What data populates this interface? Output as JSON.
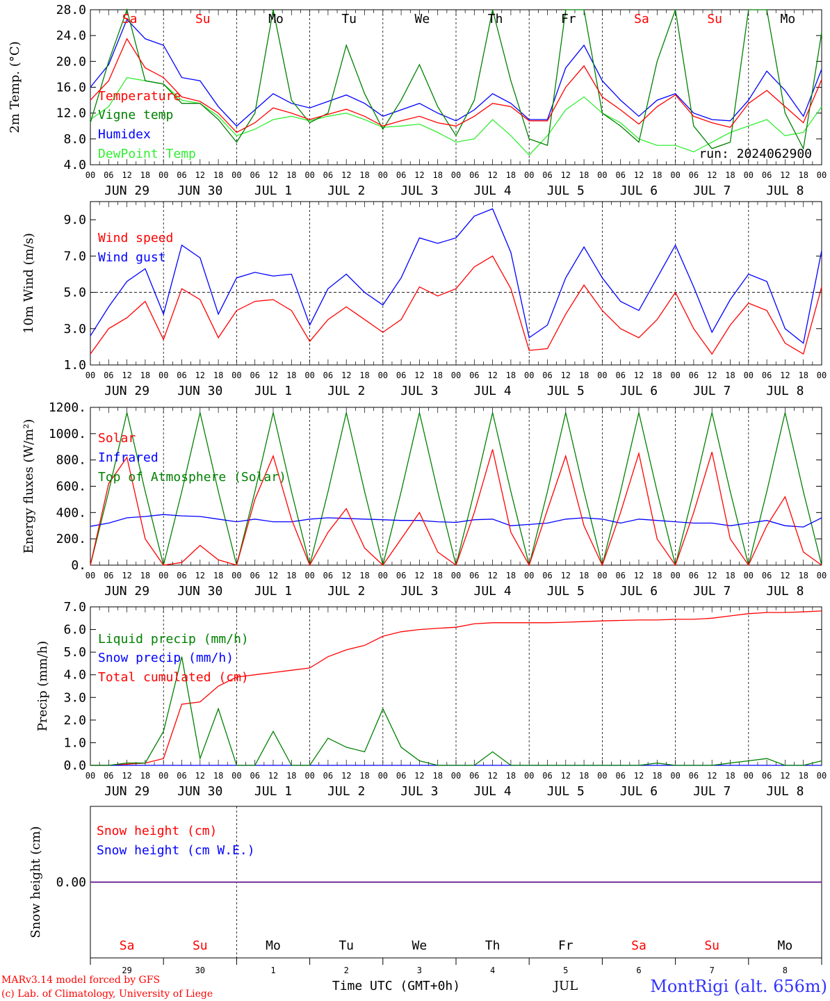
{
  "days": [
    "Sa",
    "Su",
    "Mo",
    "Tu",
    "We",
    "Th",
    "Fr",
    "Sa",
    "Su",
    "Mo"
  ],
  "weekend": [
    true,
    true,
    false,
    false,
    false,
    false,
    false,
    true,
    true,
    false
  ],
  "hour_ticks": [
    "00",
    "06",
    "12",
    "18"
  ],
  "date_labels": [
    "JUN 29",
    "JUN 30",
    "JUL  1",
    "JUL  2",
    "JUL  3",
    "JUL  4",
    "JUL  5",
    "JUL  6",
    "JUL  7",
    "JUL  8"
  ],
  "day_numbers": [
    "29",
    "30",
    "1",
    "2",
    "3",
    "4",
    "5",
    "6",
    "7",
    "8"
  ],
  "footer": {
    "model": "MARv3.14 model forced by GFS",
    "lab": "(c) Lab. of Climatology, University of Liege",
    "xlabel": "Time UTC (GMT+0h)",
    "month": "JUL",
    "station": "MontRigi (alt. 656m)"
  },
  "colors": {
    "red": "#ff0000",
    "green": "#008000",
    "blue": "#0000ff",
    "light_green": "#33ee33",
    "purple": "#7a2f9a"
  },
  "chart_data": [
    {
      "type": "line",
      "ylabel": "2m Temp. (°C)",
      "y_ticks": [
        "28.0",
        "24.0",
        "20.0",
        "16.0",
        "12.0",
        "8.0",
        "4.0"
      ],
      "ylim": [
        4,
        28
      ],
      "run_label": "run: 2024062900",
      "x_hours": [
        0,
        6,
        12,
        18,
        24,
        30,
        36,
        42,
        48,
        54,
        60,
        66,
        72,
        78,
        84,
        90,
        96,
        102,
        108,
        114,
        120,
        126,
        132,
        138,
        144,
        150,
        156,
        162,
        168,
        174,
        180,
        186,
        192,
        198,
        204,
        210,
        216,
        222,
        228,
        234,
        240
      ],
      "series": [
        {
          "name": "Temperature",
          "color": "#ff0000",
          "values": [
            14.0,
            17.0,
            23.5,
            19.0,
            17.5,
            14.5,
            13.8,
            12.0,
            9.0,
            10.5,
            12.8,
            12.0,
            11.0,
            11.8,
            12.6,
            11.5,
            10.0,
            10.8,
            11.5,
            10.5,
            10.0,
            11.5,
            13.5,
            13.0,
            10.8,
            10.8,
            16.0,
            19.3,
            14.5,
            12.5,
            10.3,
            13.0,
            14.8,
            11.5,
            10.5,
            9.8,
            13.5,
            15.5,
            13.0,
            10.5,
            17.2
          ]
        },
        {
          "name": "Vigne temp",
          "color": "#008000",
          "values": [
            10.5,
            20.0,
            30.0,
            17.0,
            16.5,
            13.5,
            13.5,
            11.0,
            7.5,
            12.0,
            30.0,
            14.0,
            10.5,
            12.0,
            22.5,
            15.0,
            9.5,
            14.0,
            19.5,
            13.0,
            8.5,
            14.0,
            28.0,
            17.0,
            8.0,
            7.0,
            28.0,
            30.0,
            12.0,
            10.0,
            7.5,
            20.0,
            30.0,
            10.0,
            6.5,
            7.5,
            28.0,
            28.0,
            12.0,
            6.5,
            24.5
          ]
        },
        {
          "name": "Humidex",
          "color": "#0000ff",
          "values": [
            16.0,
            19.5,
            26.5,
            23.5,
            22.5,
            17.5,
            17.0,
            13.0,
            10.0,
            12.5,
            15.0,
            13.5,
            12.8,
            13.8,
            14.8,
            13.5,
            11.5,
            12.5,
            13.5,
            12.0,
            10.8,
            12.5,
            15.0,
            13.5,
            11.0,
            11.0,
            19.0,
            22.5,
            17.0,
            14.0,
            11.5,
            14.0,
            15.0,
            12.0,
            11.0,
            10.8,
            14.0,
            18.5,
            15.5,
            11.5,
            18.8
          ]
        },
        {
          "name": "DewPoint Temp",
          "color": "#33ee33",
          "values": [
            11.0,
            13.0,
            17.5,
            17.0,
            16.5,
            14.0,
            13.5,
            11.5,
            8.5,
            9.5,
            11.0,
            11.5,
            10.8,
            11.5,
            12.0,
            11.0,
            9.8,
            10.0,
            10.3,
            9.0,
            7.5,
            8.0,
            11.0,
            8.5,
            5.5,
            8.5,
            12.5,
            14.5,
            12.0,
            10.5,
            8.0,
            7.0,
            7.0,
            6.0,
            7.5,
            9.0,
            10.0,
            11.0,
            8.5,
            9.0,
            13.0
          ]
        }
      ]
    },
    {
      "type": "line",
      "ylabel": "10m Wind (m/s)",
      "y_ticks": [
        "9.0",
        "7.0",
        "5.0",
        "3.0",
        "1.0"
      ],
      "ylim": [
        1,
        10
      ],
      "dashed_reference": 5.0,
      "x_hours": [
        0,
        6,
        12,
        18,
        24,
        30,
        36,
        42,
        48,
        54,
        60,
        66,
        72,
        78,
        84,
        90,
        96,
        102,
        108,
        114,
        120,
        126,
        132,
        138,
        144,
        150,
        156,
        162,
        168,
        174,
        180,
        186,
        192,
        198,
        204,
        210,
        216,
        222,
        228,
        234,
        240
      ],
      "series": [
        {
          "name": "Wind speed",
          "color": "#ff0000",
          "values": [
            1.6,
            3.0,
            3.6,
            4.5,
            2.4,
            5.2,
            4.6,
            2.5,
            4.0,
            4.5,
            4.6,
            4.0,
            2.3,
            3.5,
            4.2,
            3.5,
            2.8,
            3.5,
            5.3,
            4.8,
            5.2,
            6.4,
            7.0,
            5.2,
            1.8,
            1.9,
            3.8,
            5.4,
            4.0,
            3.0,
            2.5,
            3.5,
            5.0,
            3.0,
            1.6,
            3.2,
            4.4,
            4.0,
            2.2,
            1.6,
            5.3
          ]
        },
        {
          "name": "Wind gust",
          "color": "#0000ff",
          "values": [
            2.6,
            4.2,
            5.6,
            6.3,
            3.8,
            7.6,
            6.9,
            3.8,
            5.8,
            6.1,
            5.9,
            6.0,
            3.2,
            5.2,
            6.0,
            5.0,
            4.3,
            5.8,
            8.0,
            7.7,
            8.0,
            9.2,
            9.6,
            7.2,
            2.5,
            3.2,
            5.8,
            7.5,
            5.8,
            4.5,
            4.0,
            5.8,
            7.6,
            5.3,
            2.8,
            4.6,
            6.0,
            5.6,
            3.0,
            2.2,
            7.3
          ]
        }
      ]
    },
    {
      "type": "line",
      "ylabel": "Energy fluxes (W/m²)",
      "y_ticks": [
        "1200.",
        "1000.",
        "800.",
        "600.",
        "400.",
        "200.",
        "0."
      ],
      "ylim": [
        0,
        1200
      ],
      "x_hours": [
        0,
        6,
        12,
        18,
        24,
        30,
        36,
        42,
        48,
        54,
        60,
        66,
        72,
        78,
        84,
        90,
        96,
        102,
        108,
        114,
        120,
        126,
        132,
        138,
        144,
        150,
        156,
        162,
        168,
        174,
        180,
        186,
        192,
        198,
        204,
        210,
        216,
        222,
        228,
        234,
        240
      ],
      "series": [
        {
          "name": "Solar",
          "color": "#ff0000",
          "values": [
            0,
            620,
            820,
            200,
            0,
            20,
            150,
            40,
            0,
            500,
            830,
            350,
            0,
            250,
            430,
            130,
            0,
            200,
            400,
            100,
            0,
            400,
            880,
            250,
            0,
            420,
            830,
            300,
            0,
            400,
            850,
            200,
            0,
            400,
            860,
            200,
            0,
            300,
            520,
            100,
            0
          ]
        },
        {
          "name": "Infrared",
          "color": "#0000ff",
          "values": [
            295,
            320,
            360,
            370,
            385,
            375,
            370,
            350,
            330,
            350,
            330,
            330,
            350,
            360,
            355,
            350,
            345,
            340,
            340,
            330,
            325,
            345,
            350,
            300,
            310,
            320,
            350,
            360,
            350,
            320,
            350,
            340,
            330,
            320,
            320,
            300,
            320,
            340,
            300,
            290,
            360
          ]
        },
        {
          "name": "Top of Atmosphere (Solar)",
          "color": "#008000",
          "values": [
            0,
            560,
            1160,
            560,
            0,
            560,
            1160,
            560,
            0,
            560,
            1160,
            560,
            0,
            560,
            1160,
            560,
            0,
            560,
            1160,
            560,
            0,
            560,
            1160,
            560,
            0,
            560,
            1160,
            560,
            0,
            560,
            1160,
            560,
            0,
            560,
            1160,
            560,
            0,
            560,
            1160,
            560,
            0
          ]
        }
      ]
    },
    {
      "type": "line",
      "ylabel": "Precip (mm/h)",
      "y_ticks": [
        "7.0",
        "6.0",
        "5.0",
        "4.0",
        "3.0",
        "2.0",
        "1.0",
        "0.0"
      ],
      "ylim": [
        0,
        7
      ],
      "x_hours": [
        0,
        6,
        12,
        18,
        24,
        30,
        36,
        42,
        48,
        54,
        60,
        66,
        72,
        78,
        84,
        90,
        96,
        102,
        108,
        114,
        120,
        126,
        132,
        138,
        144,
        150,
        156,
        162,
        168,
        174,
        180,
        186,
        192,
        198,
        204,
        210,
        216,
        222,
        228,
        234,
        240
      ],
      "series": [
        {
          "name": "Liquid precip (mm/h)",
          "color": "#008000",
          "values": [
            0,
            0,
            0.1,
            0.1,
            1.5,
            4.8,
            0.3,
            2.5,
            0,
            0,
            1.5,
            0,
            0,
            1.2,
            0.8,
            0.6,
            2.5,
            0.8,
            0.2,
            0,
            0,
            0,
            0.6,
            0,
            0,
            0,
            0,
            0,
            0,
            0,
            0,
            0.1,
            0,
            0,
            0,
            0.1,
            0.2,
            0.3,
            0,
            0,
            0.2
          ]
        },
        {
          "name": "Snow precip (mm/h)",
          "color": "#0000ff",
          "values": [
            0,
            0,
            0,
            0,
            0,
            0,
            0,
            0,
            0,
            0,
            0,
            0,
            0,
            0,
            0,
            0,
            0,
            0,
            0,
            0,
            0,
            0,
            0,
            0,
            0,
            0,
            0,
            0,
            0,
            0,
            0,
            0,
            0,
            0,
            0,
            0,
            0,
            0,
            0,
            0,
            0
          ]
        },
        {
          "name": "Total cumulated (cm)",
          "color": "#ff0000",
          "values": [
            0,
            0,
            0.05,
            0.1,
            0.3,
            2.7,
            2.8,
            3.5,
            3.9,
            4.0,
            4.1,
            4.2,
            4.3,
            4.8,
            5.1,
            5.3,
            5.7,
            5.9,
            6.0,
            6.05,
            6.1,
            6.25,
            6.3,
            6.3,
            6.3,
            6.3,
            6.32,
            6.35,
            6.38,
            6.4,
            6.42,
            6.42,
            6.45,
            6.45,
            6.5,
            6.6,
            6.7,
            6.75,
            6.75,
            6.78,
            6.82
          ]
        }
      ]
    },
    {
      "type": "line",
      "ylabel": "Snow height (cm)",
      "y_ticks": [
        "0.00"
      ],
      "ylim": [
        -1,
        1
      ],
      "x_hours": [
        0,
        240
      ],
      "series": [
        {
          "name": "Snow height (cm)",
          "color": "#ff0000",
          "values": [
            0,
            0
          ]
        },
        {
          "name": "Snow height (cm W.E.)",
          "color": "#0000ff",
          "values": [
            0,
            0
          ]
        }
      ]
    }
  ]
}
